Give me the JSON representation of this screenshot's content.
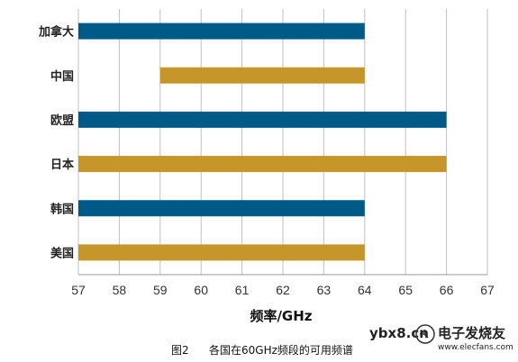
{
  "chart_data": {
    "type": "bar",
    "orientation": "horizontal",
    "title": "",
    "xlabel": "频率/GHz",
    "ylabel": "",
    "xlim": [
      57,
      67
    ],
    "xticks": [
      57,
      58,
      59,
      60,
      61,
      62,
      63,
      64,
      65,
      66,
      67
    ],
    "grid": true,
    "categories": [
      "加拿大",
      "中国",
      "欧盟",
      "日本",
      "韩国",
      "美国"
    ],
    "ranges": [
      {
        "category": "加拿大",
        "start": 57,
        "end": 64,
        "color": "#005a87"
      },
      {
        "category": "中国",
        "start": 59,
        "end": 64,
        "color": "#c7962a"
      },
      {
        "category": "欧盟",
        "start": 57,
        "end": 66,
        "color": "#005a87"
      },
      {
        "category": "日本",
        "start": 57,
        "end": 66,
        "color": "#c7962a"
      },
      {
        "category": "韩国",
        "start": 57,
        "end": 64,
        "color": "#005a87"
      },
      {
        "category": "美国",
        "start": 57,
        "end": 64,
        "color": "#c7962a"
      }
    ]
  },
  "caption": {
    "figure": "图2",
    "text": "各国在60GHz频段的可用频谱"
  },
  "watermark": {
    "site": "ybx8.cn",
    "brand": "电子发烧友",
    "url": "www.elecfans.com"
  },
  "colors": {
    "blue": "#005a87",
    "gold": "#c7962a",
    "grid": "#c0c0c0"
  }
}
